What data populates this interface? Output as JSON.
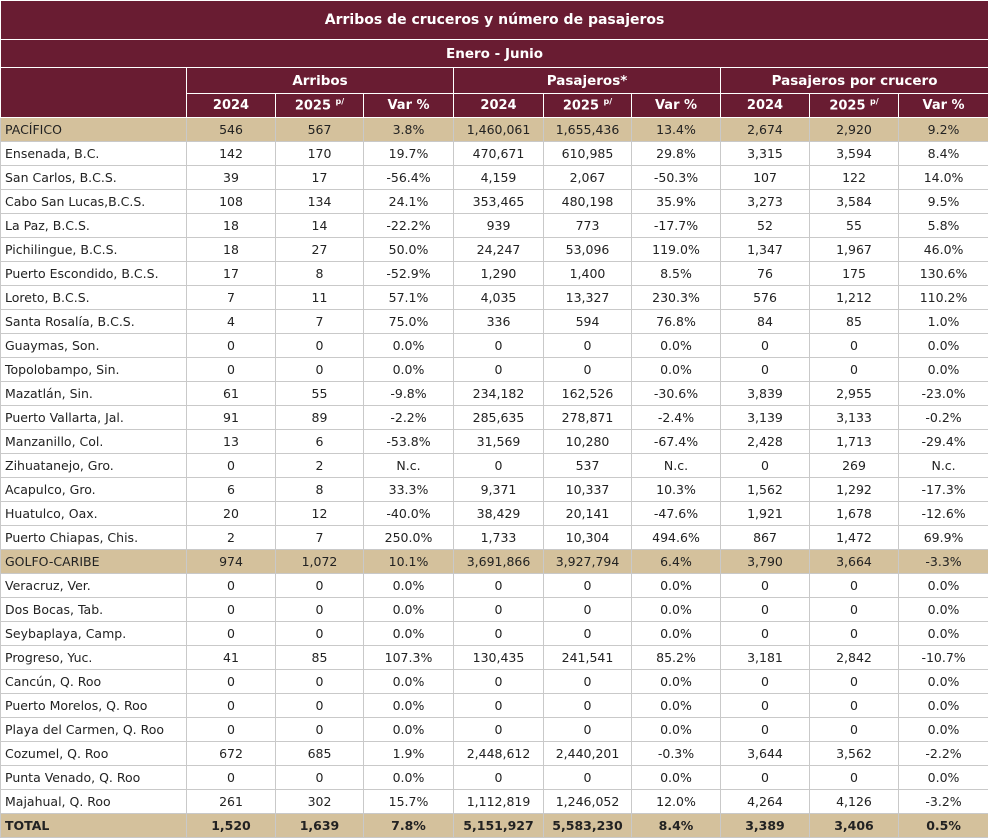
{
  "title": "Arribos de cruceros y número de pasajeros",
  "period": "Enero - Junio",
  "groups": [
    "Arribos",
    "Pasajeros*",
    "Pasajeros por crucero"
  ],
  "year_headers": [
    {
      "label": "2024",
      "sup": ""
    },
    {
      "label": "2025",
      "sup": "p/"
    },
    {
      "label": "Var %",
      "sup": ""
    }
  ],
  "colors": {
    "header_bg": "#691c32",
    "region_bg": "#d4c19c",
    "header_text": "#ffffff"
  },
  "rows": [
    {
      "type": "region",
      "name": "PACÍFICO",
      "values": [
        "546",
        "567",
        "3.8%",
        "1,460,061",
        "1,655,436",
        "13.4%",
        "2,674",
        "2,920",
        "9.2%"
      ]
    },
    {
      "type": "port",
      "name": "Ensenada, B.C.",
      "values": [
        "142",
        "170",
        "19.7%",
        "470,671",
        "610,985",
        "29.8%",
        "3,315",
        "3,594",
        "8.4%"
      ]
    },
    {
      "type": "port",
      "name": "San Carlos, B.C.S.",
      "values": [
        "39",
        "17",
        "-56.4%",
        "4,159",
        "2,067",
        "-50.3%",
        "107",
        "122",
        "14.0%"
      ]
    },
    {
      "type": "port",
      "name": "Cabo San Lucas,B.C.S.",
      "values": [
        "108",
        "134",
        "24.1%",
        "353,465",
        "480,198",
        "35.9%",
        "3,273",
        "3,584",
        "9.5%"
      ]
    },
    {
      "type": "port",
      "name": "La Paz, B.C.S.",
      "values": [
        "18",
        "14",
        "-22.2%",
        "939",
        "773",
        "-17.7%",
        "52",
        "55",
        "5.8%"
      ]
    },
    {
      "type": "port",
      "name": "Pichilingue, B.C.S.",
      "values": [
        "18",
        "27",
        "50.0%",
        "24,247",
        "53,096",
        "119.0%",
        "1,347",
        "1,967",
        "46.0%"
      ]
    },
    {
      "type": "port",
      "name": "Puerto Escondido, B.C.S.",
      "values": [
        "17",
        "8",
        "-52.9%",
        "1,290",
        "1,400",
        "8.5%",
        "76",
        "175",
        "130.6%"
      ]
    },
    {
      "type": "port",
      "name": "Loreto, B.C.S.",
      "values": [
        "7",
        "11",
        "57.1%",
        "4,035",
        "13,327",
        "230.3%",
        "576",
        "1,212",
        "110.2%"
      ]
    },
    {
      "type": "port",
      "name": "Santa Rosalía, B.C.S.",
      "values": [
        "4",
        "7",
        "75.0%",
        "336",
        "594",
        "76.8%",
        "84",
        "85",
        "1.0%"
      ]
    },
    {
      "type": "port",
      "name": "Guaymas, Son.",
      "values": [
        "0",
        "0",
        "0.0%",
        "0",
        "0",
        "0.0%",
        "0",
        "0",
        "0.0%"
      ]
    },
    {
      "type": "port",
      "name": "Topolobampo, Sin.",
      "values": [
        "0",
        "0",
        "0.0%",
        "0",
        "0",
        "0.0%",
        "0",
        "0",
        "0.0%"
      ]
    },
    {
      "type": "port",
      "name": "Mazatlán, Sin.",
      "values": [
        "61",
        "55",
        "-9.8%",
        "234,182",
        "162,526",
        "-30.6%",
        "3,839",
        "2,955",
        "-23.0%"
      ]
    },
    {
      "type": "port",
      "name": "Puerto Vallarta, Jal.",
      "values": [
        "91",
        "89",
        "-2.2%",
        "285,635",
        "278,871",
        "-2.4%",
        "3,139",
        "3,133",
        "-0.2%"
      ]
    },
    {
      "type": "port",
      "name": "Manzanillo, Col.",
      "values": [
        "13",
        "6",
        "-53.8%",
        "31,569",
        "10,280",
        "-67.4%",
        "2,428",
        "1,713",
        "-29.4%"
      ]
    },
    {
      "type": "port",
      "name": "Zihuatanejo, Gro.",
      "values": [
        "0",
        "2",
        "N.c.",
        "0",
        "537",
        "N.c.",
        "0",
        "269",
        "N.c."
      ]
    },
    {
      "type": "port",
      "name": "Acapulco, Gro.",
      "values": [
        "6",
        "8",
        "33.3%",
        "9,371",
        "10,337",
        "10.3%",
        "1,562",
        "1,292",
        "-17.3%"
      ]
    },
    {
      "type": "port",
      "name": "Huatulco, Oax.",
      "values": [
        "20",
        "12",
        "-40.0%",
        "38,429",
        "20,141",
        "-47.6%",
        "1,921",
        "1,678",
        "-12.6%"
      ]
    },
    {
      "type": "port",
      "name": "Puerto Chiapas, Chis.",
      "values": [
        "2",
        "7",
        "250.0%",
        "1,733",
        "10,304",
        "494.6%",
        "867",
        "1,472",
        "69.9%"
      ]
    },
    {
      "type": "region",
      "name": "GOLFO-CARIBE",
      "values": [
        "974",
        "1,072",
        "10.1%",
        "3,691,866",
        "3,927,794",
        "6.4%",
        "3,790",
        "3,664",
        "-3.3%"
      ]
    },
    {
      "type": "port",
      "name": "Veracruz, Ver.",
      "values": [
        "0",
        "0",
        "0.0%",
        "0",
        "0",
        "0.0%",
        "0",
        "0",
        "0.0%"
      ]
    },
    {
      "type": "port",
      "name": "Dos Bocas, Tab.",
      "values": [
        "0",
        "0",
        "0.0%",
        "0",
        "0",
        "0.0%",
        "0",
        "0",
        "0.0%"
      ]
    },
    {
      "type": "port",
      "name": "Seybaplaya, Camp.",
      "values": [
        "0",
        "0",
        "0.0%",
        "0",
        "0",
        "0.0%",
        "0",
        "0",
        "0.0%"
      ]
    },
    {
      "type": "port",
      "name": "Progreso, Yuc.",
      "values": [
        "41",
        "85",
        "107.3%",
        "130,435",
        "241,541",
        "85.2%",
        "3,181",
        "2,842",
        "-10.7%"
      ]
    },
    {
      "type": "port",
      "name": "Cancún, Q. Roo",
      "values": [
        "0",
        "0",
        "0.0%",
        "0",
        "0",
        "0.0%",
        "0",
        "0",
        "0.0%"
      ]
    },
    {
      "type": "port",
      "name": "Puerto Morelos, Q. Roo",
      "values": [
        "0",
        "0",
        "0.0%",
        "0",
        "0",
        "0.0%",
        "0",
        "0",
        "0.0%"
      ]
    },
    {
      "type": "port",
      "name": "Playa del Carmen, Q. Roo",
      "values": [
        "0",
        "0",
        "0.0%",
        "0",
        "0",
        "0.0%",
        "0",
        "0",
        "0.0%"
      ]
    },
    {
      "type": "port",
      "name": "Cozumel, Q. Roo",
      "values": [
        "672",
        "685",
        "1.9%",
        "2,448,612",
        "2,440,201",
        "-0.3%",
        "3,644",
        "3,562",
        "-2.2%"
      ]
    },
    {
      "type": "port",
      "name": "Punta Venado, Q. Roo",
      "values": [
        "0",
        "0",
        "0.0%",
        "0",
        "0",
        "0.0%",
        "0",
        "0",
        "0.0%"
      ]
    },
    {
      "type": "port",
      "name": "Majahual, Q. Roo",
      "values": [
        "261",
        "302",
        "15.7%",
        "1,112,819",
        "1,246,052",
        "12.0%",
        "4,264",
        "4,126",
        "-3.2%"
      ]
    },
    {
      "type": "total",
      "name": "TOTAL",
      "values": [
        "1,520",
        "1,639",
        "7.8%",
        "5,151,927",
        "5,583,230",
        "8.4%",
        "3,389",
        "3,406",
        "0.5%"
      ]
    }
  ]
}
